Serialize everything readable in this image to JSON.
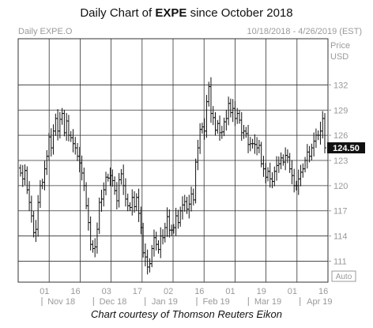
{
  "header": {
    "title_prefix": "Daily Chart of ",
    "ticker": "EXPE",
    "title_suffix": " since October 2018",
    "symbol": "Daily EXPE.O",
    "date_range": "10/18/2018 - 4/26/2019 (EST)",
    "axis_title_1": "Price",
    "axis_title_2": "USD",
    "auto_label": "Auto"
  },
  "caption": "Chart courtesy of Thomson Reuters Eikon",
  "colors": {
    "bars": "#111111",
    "grid": "#333333",
    "muted": "#9a9a9a",
    "last_price_box": "#111111"
  },
  "chart_data": {
    "type": "ohlc",
    "title": "Daily Chart of EXPE since October 2018",
    "ylabel": "Price USD",
    "ylim": [
      108.5,
      137.5
    ],
    "y_ticks": [
      111,
      114,
      117,
      120,
      123,
      126,
      129,
      132
    ],
    "last_price": 124.5,
    "x_day_labels": [
      "01",
      "16",
      "03",
      "17",
      "02",
      "16",
      "01",
      "19",
      "01",
      "16"
    ],
    "x_month_labels": [
      "Nov 18",
      "Dec 18",
      "Jan 19",
      "Feb 19",
      "Mar 19",
      "Apr 19"
    ],
    "closes": [
      121.5,
      120.8,
      121.8,
      119.5,
      118.0,
      116.4,
      114.4,
      114.8,
      118.0,
      120.0,
      120.4,
      122.0,
      123.5,
      125.8,
      124.5,
      126.5,
      128.0,
      126.5,
      127.9,
      128.6,
      126.3,
      127.7,
      126.0,
      125.7,
      125.0,
      124.5,
      123.5,
      122.7,
      121.5,
      120.0,
      117.6,
      115.6,
      113.0,
      112.5,
      112.7,
      114.8,
      118.0,
      118.4,
      119.5,
      121.0,
      120.9,
      121.2,
      120.6,
      119.4,
      118.2,
      120.7,
      121.4,
      120.0,
      118.4,
      117.6,
      117.4,
      118.6,
      117.5,
      118.6,
      116.7,
      115.0,
      112.0,
      111.5,
      110.3,
      110.7,
      112.5,
      113.8,
      113.0,
      112.4,
      114.0,
      113.8,
      115.0,
      116.3,
      114.7,
      114.7,
      115.0,
      116.4,
      115.6,
      117.0,
      117.7,
      118.1,
      117.2,
      117.8,
      119.0,
      118.3,
      122.8,
      124.5,
      126.7,
      127.0,
      126.5,
      130.0,
      131.8,
      128.6,
      128.1,
      126.6,
      127.4,
      126.3,
      126.4,
      127.6,
      128.0,
      129.8,
      128.7,
      129.2,
      128.0,
      128.6,
      127.8,
      126.3,
      126.5,
      126.2,
      124.9,
      125.0,
      125.0,
      124.9,
      124.5,
      124.8,
      122.6,
      122.0,
      121.0,
      121.7,
      120.8,
      120.5,
      121.7,
      122.4,
      122.6,
      123.3,
      122.8,
      123.6,
      123.4,
      122.0,
      121.2,
      120.0,
      120.0,
      120.8,
      121.6,
      122.0,
      123.0,
      124.0,
      123.5,
      124.5,
      125.3,
      126.0,
      126.0,
      126.5,
      128.0,
      124.5
    ]
  }
}
